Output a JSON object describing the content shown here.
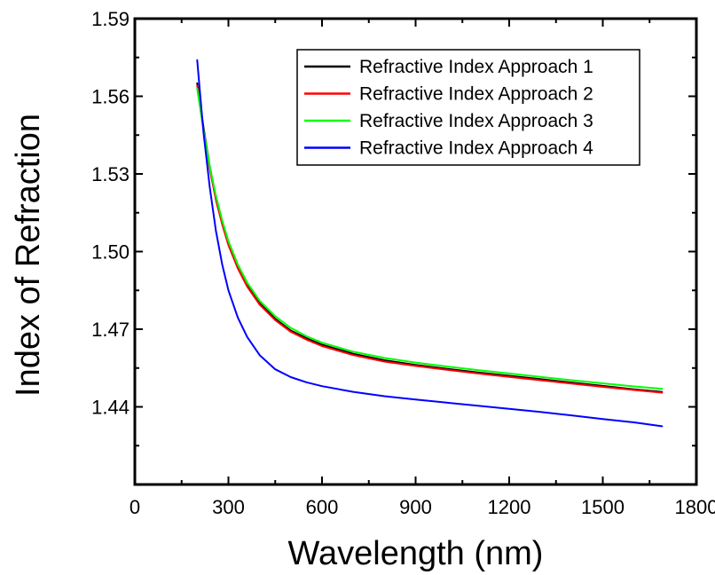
{
  "chart_data": {
    "type": "line",
    "title": "",
    "xlabel": "Wavelength (nm)",
    "ylabel": "Index of Refraction",
    "xlim": [
      0,
      1800
    ],
    "ylim": [
      1.41,
      1.59
    ],
    "xticks": [
      0,
      300,
      600,
      900,
      1200,
      1500,
      1800
    ],
    "yticks": [
      1.44,
      1.47,
      1.5,
      1.53,
      1.56,
      1.59
    ],
    "xtick_labels": [
      "0",
      "300",
      "600",
      "900",
      "1200",
      "1500",
      "1800"
    ],
    "ytick_labels": [
      "1.44",
      "1.47",
      "1.50",
      "1.53",
      "1.56",
      "1.59"
    ],
    "grid": false,
    "legend_position": "top-right",
    "series": [
      {
        "name": "Refractive Index Approach 1",
        "color": "#000000",
        "x": [
          200,
          220,
          240,
          260,
          280,
          300,
          330,
          360,
          400,
          450,
          500,
          550,
          600,
          700,
          800,
          900,
          1000,
          1100,
          1200,
          1300,
          1400,
          1500,
          1600,
          1690
        ],
        "y": [
          1.565,
          1.548,
          1.533,
          1.521,
          1.511,
          1.503,
          1.494,
          1.487,
          1.48,
          1.474,
          1.4695,
          1.4665,
          1.464,
          1.4605,
          1.458,
          1.4562,
          1.4547,
          1.4533,
          1.452,
          1.4507,
          1.4494,
          1.4481,
          1.4468,
          1.4458
        ]
      },
      {
        "name": "Refractive Index Approach 2",
        "color": "#ff0000",
        "x": [
          200,
          220,
          240,
          260,
          280,
          300,
          330,
          360,
          400,
          450,
          500,
          550,
          600,
          700,
          800,
          900,
          1000,
          1100,
          1200,
          1300,
          1400,
          1500,
          1600,
          1690
        ],
        "y": [
          1.564,
          1.547,
          1.532,
          1.52,
          1.5105,
          1.5025,
          1.4935,
          1.4865,
          1.4795,
          1.4735,
          1.469,
          1.466,
          1.4635,
          1.46,
          1.4575,
          1.4558,
          1.4543,
          1.4529,
          1.4516,
          1.4503,
          1.449,
          1.4477,
          1.4465,
          1.4455
        ]
      },
      {
        "name": "Refractive Index Approach 3",
        "color": "#00ff00",
        "x": [
          200,
          220,
          240,
          260,
          280,
          300,
          330,
          360,
          400,
          450,
          500,
          550,
          600,
          700,
          800,
          900,
          1000,
          1100,
          1200,
          1300,
          1400,
          1500,
          1600,
          1690
        ],
        "y": [
          1.563,
          1.547,
          1.533,
          1.5215,
          1.512,
          1.504,
          1.495,
          1.488,
          1.481,
          1.475,
          1.4705,
          1.4673,
          1.4648,
          1.4613,
          1.4589,
          1.4571,
          1.4556,
          1.4542,
          1.4529,
          1.4516,
          1.4503,
          1.4491,
          1.4479,
          1.447
        ]
      },
      {
        "name": "Refractive Index Approach 4",
        "color": "#0000ff",
        "x": [
          200,
          210,
          220,
          240,
          260,
          280,
          300,
          330,
          360,
          400,
          450,
          500,
          550,
          600,
          700,
          800,
          900,
          1000,
          1100,
          1200,
          1300,
          1400,
          1500,
          1600,
          1690
        ],
        "y": [
          1.574,
          1.56,
          1.546,
          1.525,
          1.508,
          1.495,
          1.485,
          1.4745,
          1.467,
          1.46,
          1.4545,
          1.4515,
          1.4495,
          1.448,
          1.4458,
          1.4441,
          1.4428,
          1.4416,
          1.4404,
          1.4392,
          1.438,
          1.4367,
          1.4353,
          1.434,
          1.4325
        ]
      }
    ]
  }
}
